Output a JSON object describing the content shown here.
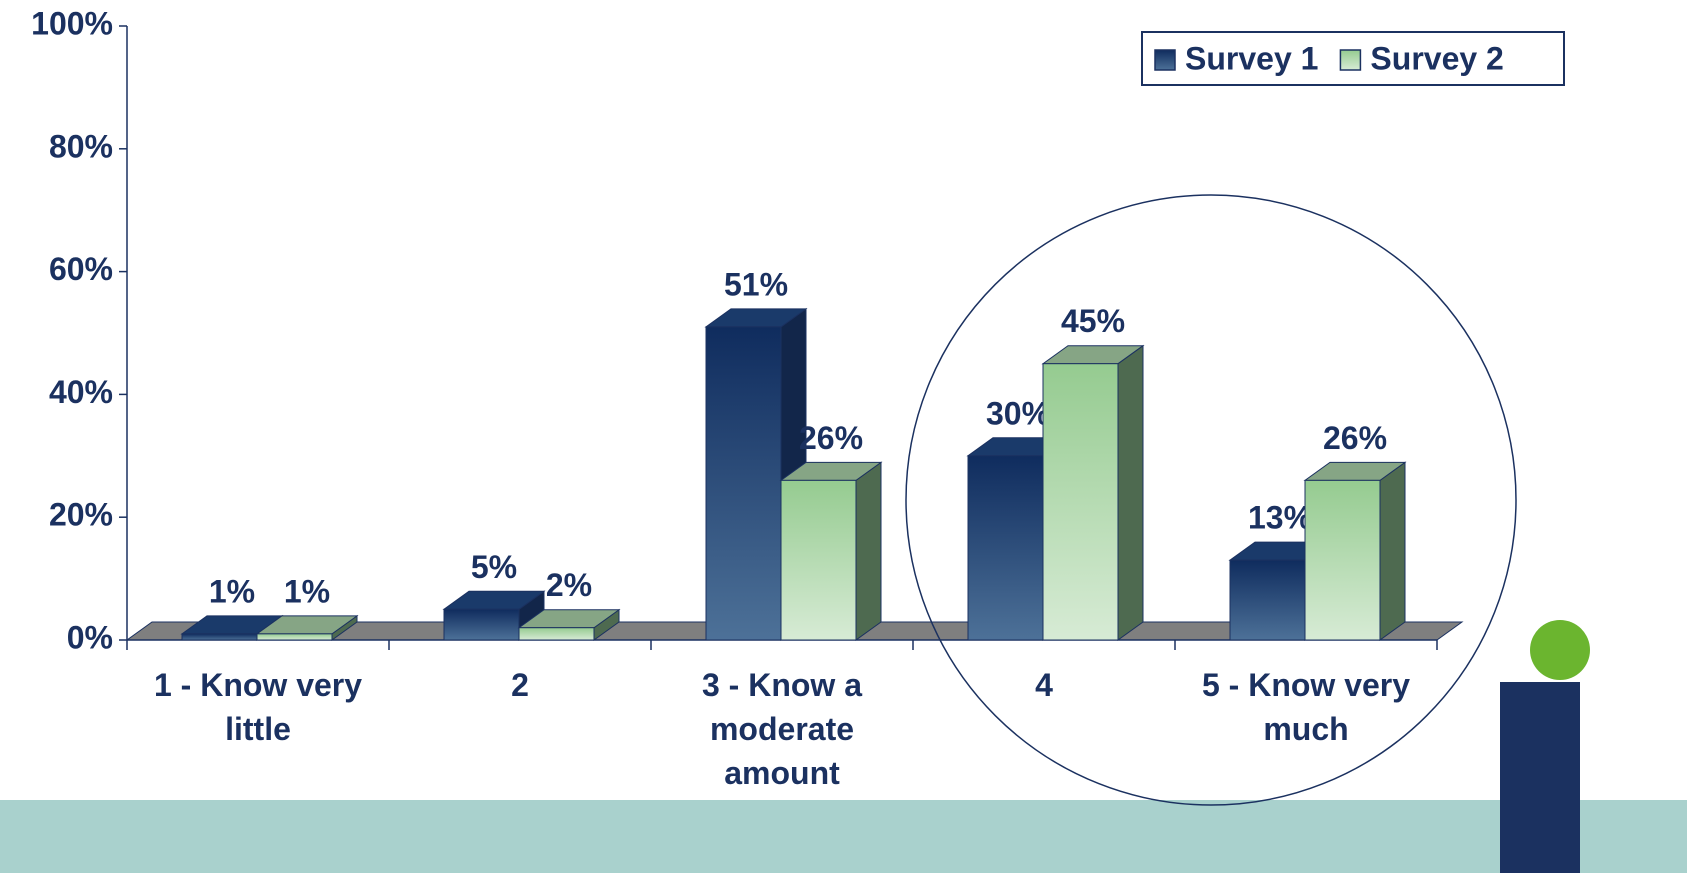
{
  "chart_data": {
    "type": "bar3d",
    "categories": [
      "1 - Know very little",
      "2",
      "3 - Know a moderate amount",
      "4",
      "5 - Know very much"
    ],
    "series": [
      {
        "name": "Survey 1",
        "color": "#163a6e",
        "values": [
          1,
          5,
          51,
          30,
          13
        ],
        "value_labels": [
          "1%",
          "5%",
          "51%",
          "30%",
          "13%"
        ]
      },
      {
        "name": "Survey 2",
        "color": "#9ccf98",
        "values": [
          1,
          2,
          26,
          45,
          26
        ],
        "value_labels": [
          "1%",
          "2%",
          "26%",
          "45%",
          "26%"
        ]
      }
    ],
    "ylim": [
      0,
      100
    ],
    "yticks": [
      {
        "value": 0,
        "label": "0%"
      },
      {
        "value": 20,
        "label": "20%"
      },
      {
        "value": 40,
        "label": "40%"
      },
      {
        "value": 60,
        "label": "60%"
      },
      {
        "value": 80,
        "label": "80%"
      },
      {
        "value": 100,
        "label": "100%"
      }
    ],
    "legend": "top-right"
  }
}
